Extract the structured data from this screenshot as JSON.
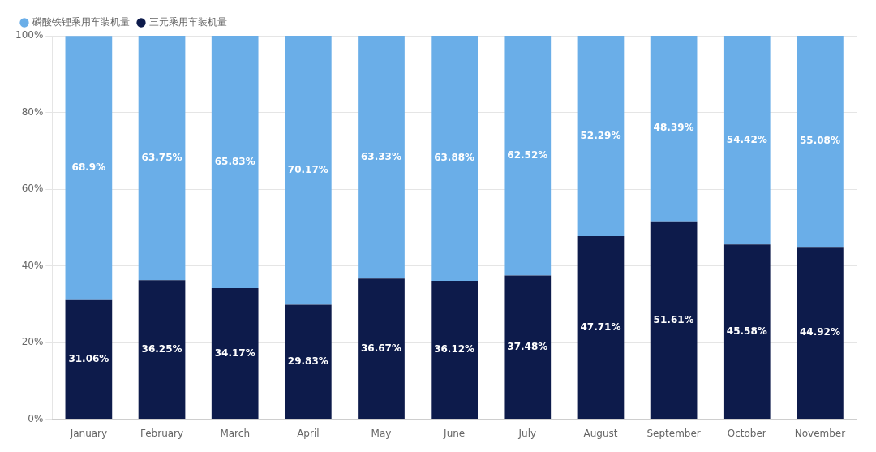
{
  "chart_data": {
    "type": "bar",
    "stacked": true,
    "categories": [
      "January",
      "February",
      "March",
      "April",
      "May",
      "June",
      "July",
      "August",
      "September",
      "October",
      "November"
    ],
    "series": [
      {
        "name": "三元乘用车装机量",
        "color": "#0d1b4b",
        "values": [
          31.06,
          36.25,
          34.17,
          29.83,
          36.67,
          36.12,
          37.48,
          47.71,
          51.61,
          45.58,
          44.92
        ],
        "value_labels": [
          "31.06%",
          "36.25%",
          "34.17%",
          "29.83%",
          "36.67%",
          "36.12%",
          "37.48%",
          "47.71%",
          "51.61%",
          "45.58%",
          "44.92%"
        ]
      },
      {
        "name": "磷酸铁锂乘用车装机量",
        "color": "#6aaee8",
        "values": [
          68.9,
          63.75,
          65.83,
          70.17,
          63.33,
          63.88,
          62.52,
          52.29,
          48.39,
          54.42,
          55.08
        ],
        "value_labels": [
          "68.9%",
          "63.75%",
          "65.83%",
          "70.17%",
          "63.33%",
          "63.88%",
          "62.52%",
          "52.29%",
          "48.39%",
          "54.42%",
          "55.08%"
        ]
      }
    ],
    "ylim": [
      0,
      100
    ],
    "yticks": [
      {
        "value": 0,
        "label": "0%"
      },
      {
        "value": 20,
        "label": "20%"
      },
      {
        "value": 40,
        "label": "40%"
      },
      {
        "value": 60,
        "label": "60%"
      },
      {
        "value": 80,
        "label": "80%"
      },
      {
        "value": 100,
        "label": "100%"
      }
    ],
    "grid": true,
    "legend": "upper left",
    "data_labels": true
  }
}
